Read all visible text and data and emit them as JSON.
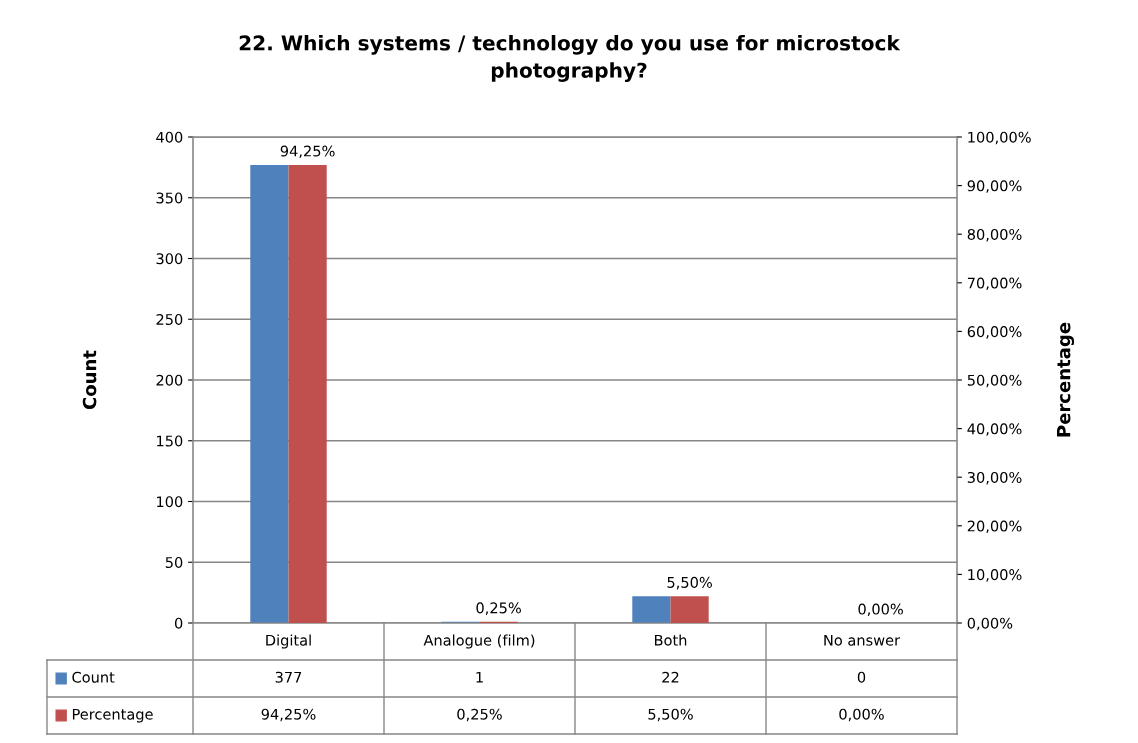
{
  "chart_data": {
    "type": "bar",
    "title": "22. Which systems / technology do you use for microstock photography?",
    "ylabel": "Count",
    "y2label": "Percentage",
    "categories": [
      "Digital",
      "Analogue (film)",
      "Both",
      "No answer"
    ],
    "series": [
      {
        "name": "Count",
        "color": "#4f81bd",
        "values": [
          377,
          1,
          22,
          0
        ],
        "value_labels": [
          "377",
          "1",
          "22",
          "0"
        ]
      },
      {
        "name": "Percentage",
        "color": "#c0504d",
        "axis": "y2",
        "values": [
          94.25,
          0.25,
          5.5,
          0
        ],
        "value_labels": [
          "94,25%",
          "0,25%",
          "5,50%",
          "0,00%"
        ]
      }
    ],
    "ylim": [
      0,
      400
    ],
    "yticks": [
      0,
      50,
      100,
      150,
      200,
      250,
      300,
      350,
      400
    ],
    "y2lim": [
      0,
      100
    ],
    "y2ticks": [
      {
        "value": 0,
        "label": "0,00%"
      },
      {
        "value": 10,
        "label": "10,00%"
      },
      {
        "value": 20,
        "label": "20,00%"
      },
      {
        "value": 30,
        "label": "30,00%"
      },
      {
        "value": 40,
        "label": "40,00%"
      },
      {
        "value": 50,
        "label": "50,00%"
      },
      {
        "value": 60,
        "label": "60,00%"
      },
      {
        "value": 70,
        "label": "70,00%"
      },
      {
        "value": 80,
        "label": "80,00%"
      },
      {
        "value": 90,
        "label": "90,00%"
      },
      {
        "value": 100,
        "label": "100,00%"
      }
    ],
    "grid": "y",
    "legend": "bottom"
  }
}
